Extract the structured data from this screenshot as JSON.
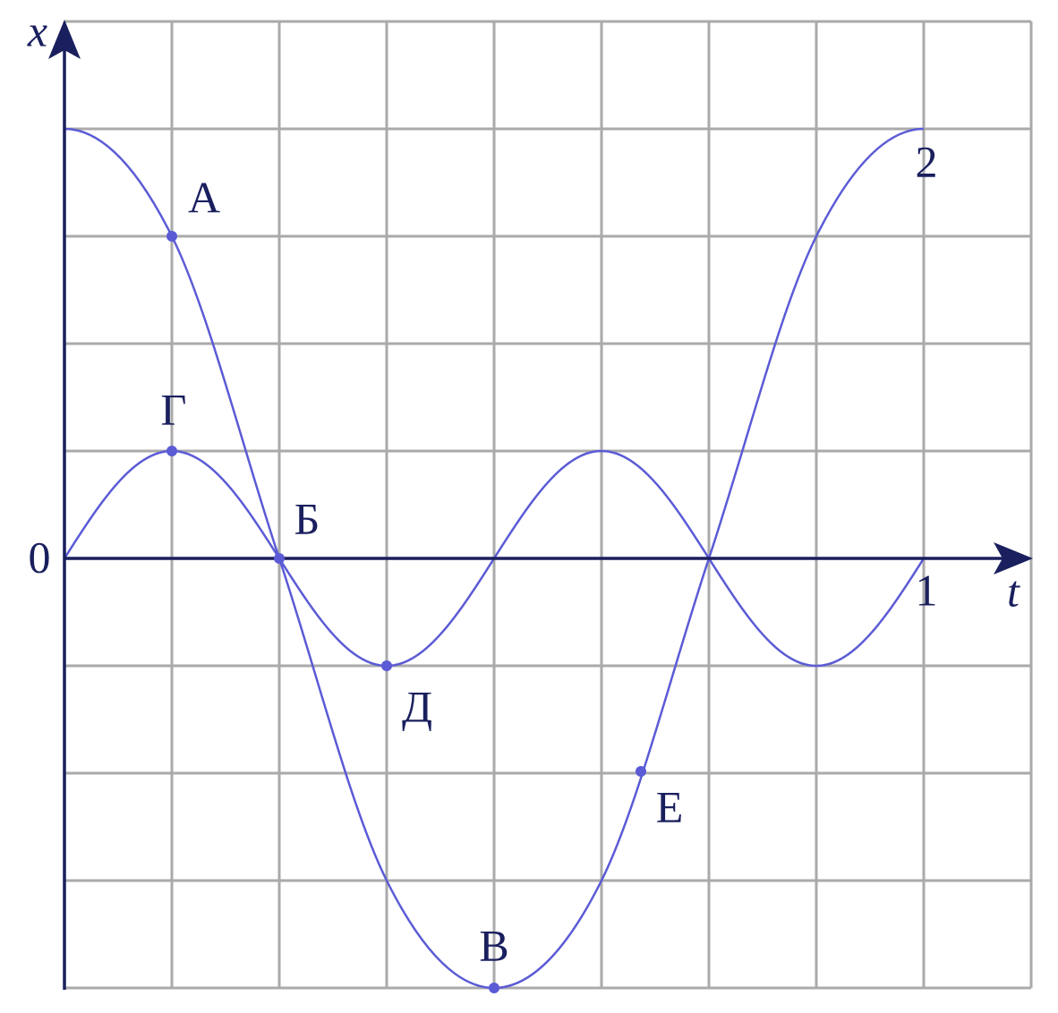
{
  "axes": {
    "vertical_label": "x",
    "horizontal_label": "t",
    "origin": "0"
  },
  "curves": [
    {
      "label": "1"
    },
    {
      "label": "2"
    }
  ],
  "points": [
    {
      "label": "А"
    },
    {
      "label": "Б"
    },
    {
      "label": "В"
    },
    {
      "label": "Г"
    },
    {
      "label": "Д"
    },
    {
      "label": "Е"
    }
  ]
}
